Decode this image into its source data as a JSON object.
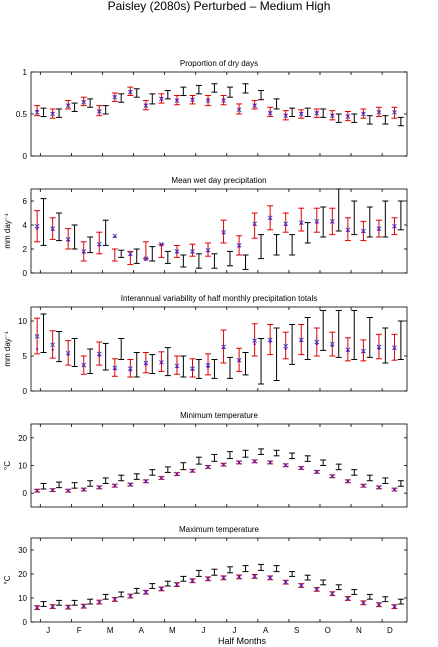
{
  "figure": {
    "title": "Paisley (2080s) Perturbed – Medium High",
    "xlabel": "Half Months"
  },
  "month_labels": [
    "J",
    "F",
    "M",
    "A",
    "M",
    "J",
    "J",
    "A",
    "S",
    "O",
    "N",
    "D"
  ],
  "colors": {
    "observed": "#000000",
    "model": "#dd0000",
    "marker": "#3344cc",
    "median": "#990099"
  },
  "chart_data": [
    {
      "type": "errorbar",
      "title": "Proportion of dry days",
      "ylabel": "",
      "ylim": [
        0,
        1
      ],
      "yticks": [
        "0",
        "0.5",
        "1"
      ],
      "x": [
        1,
        2,
        3,
        4,
        5,
        6,
        7,
        8,
        9,
        10,
        11,
        12,
        13,
        14,
        15,
        16,
        17,
        18,
        19,
        20,
        21,
        22,
        23,
        24
      ],
      "series": [
        {
          "role": "observed",
          "low": [
            0.47,
            0.46,
            0.53,
            0.58,
            0.5,
            0.64,
            0.7,
            0.62,
            0.68,
            0.72,
            0.74,
            0.76,
            0.7,
            0.75,
            0.67,
            0.56,
            0.47,
            0.47,
            0.46,
            0.4,
            0.4,
            0.38,
            0.38,
            0.36
          ],
          "high": [
            0.57,
            0.56,
            0.63,
            0.68,
            0.6,
            0.74,
            0.8,
            0.74,
            0.78,
            0.82,
            0.84,
            0.86,
            0.82,
            0.86,
            0.78,
            0.68,
            0.57,
            0.57,
            0.56,
            0.5,
            0.5,
            0.48,
            0.48,
            0.46
          ]
        },
        {
          "role": "model",
          "low": [
            0.48,
            0.45,
            0.56,
            0.6,
            0.48,
            0.65,
            0.72,
            0.55,
            0.63,
            0.61,
            0.62,
            0.6,
            0.61,
            0.5,
            0.56,
            0.47,
            0.43,
            0.45,
            0.46,
            0.43,
            0.42,
            0.45,
            0.47,
            0.45
          ],
          "high": [
            0.6,
            0.56,
            0.66,
            0.7,
            0.6,
            0.75,
            0.82,
            0.66,
            0.74,
            0.72,
            0.72,
            0.72,
            0.72,
            0.62,
            0.66,
            0.58,
            0.54,
            0.55,
            0.56,
            0.54,
            0.53,
            0.56,
            0.58,
            0.58
          ],
          "mean": [
            0.52,
            0.5,
            0.6,
            0.64,
            0.53,
            0.7,
            0.76,
            0.6,
            0.68,
            0.66,
            0.67,
            0.66,
            0.66,
            0.55,
            0.6,
            0.51,
            0.48,
            0.5,
            0.51,
            0.48,
            0.47,
            0.5,
            0.52,
            0.52
          ],
          "median": [
            0.54,
            0.51,
            0.61,
            0.65,
            0.54,
            0.71,
            0.77,
            0.61,
            0.69,
            0.67,
            0.68,
            0.67,
            0.67,
            0.56,
            0.61,
            0.52,
            0.49,
            0.51,
            0.52,
            0.49,
            0.48,
            0.51,
            0.53,
            0.53
          ]
        }
      ]
    },
    {
      "type": "errorbar",
      "title": "Mean wet day precipitation",
      "ylabel": "mm day⁻¹",
      "ylim": [
        0,
        7
      ],
      "yticks": [
        "0",
        "2",
        "4",
        "6"
      ],
      "x": [
        1,
        2,
        3,
        4,
        5,
        6,
        7,
        8,
        9,
        10,
        11,
        12,
        13,
        14,
        15,
        16,
        17,
        18,
        19,
        20,
        21,
        22,
        23,
        24
      ],
      "series": [
        {
          "role": "observed",
          "low": [
            2.3,
            2.7,
            2.0,
            1.7,
            2.3,
            1.3,
            0.8,
            1.0,
            0.8,
            0.5,
            0.4,
            0.4,
            0.6,
            0.3,
            1.2,
            1.5,
            1.5,
            2.5,
            3.0,
            3.5,
            3.2,
            3.0,
            3.0,
            3.6
          ],
          "high": [
            6.2,
            5.0,
            4.0,
            3.0,
            4.4,
            1.9,
            2.0,
            2.2,
            1.8,
            1.5,
            1.6,
            1.6,
            1.8,
            1.5,
            3.2,
            3.2,
            3.2,
            4.2,
            5.5,
            7.0,
            6.0,
            5.5,
            6.0,
            6.0
          ]
        },
        {
          "role": "model",
          "low": [
            2.6,
            2.8,
            2.0,
            1.0,
            1.6,
            1.0,
            0.7,
            1.2,
            1.3,
            1.3,
            1.4,
            1.4,
            2.5,
            1.5,
            2.9,
            3.6,
            3.4,
            3.5,
            3.4,
            3.2,
            2.7,
            2.7,
            3.0,
            3.2
          ],
          "high": [
            5.2,
            4.6,
            3.7,
            2.6,
            3.4,
            2.0,
            1.8,
            2.6,
            2.4,
            2.3,
            2.4,
            2.5,
            4.4,
            3.1,
            5.0,
            5.6,
            5.0,
            5.4,
            5.4,
            5.4,
            4.6,
            4.3,
            4.4,
            4.6
          ],
          "mean": [
            3.9,
            3.7,
            2.8,
            1.8,
            2.4,
            3.1,
            1.6,
            1.2,
            2.4,
            1.8,
            1.8,
            1.9,
            3.4,
            2.3,
            4.1,
            4.6,
            4.1,
            4.2,
            4.3,
            4.3,
            3.6,
            3.5,
            3.7,
            3.9
          ],
          "median": [
            3.7,
            3.6,
            2.7,
            1.7,
            2.3,
            3.0,
            1.5,
            1.1,
            2.3,
            1.7,
            1.7,
            1.8,
            3.3,
            2.2,
            4.0,
            4.5,
            4.0,
            4.1,
            4.2,
            4.2,
            3.5,
            3.4,
            3.6,
            3.8
          ]
        }
      ]
    },
    {
      "type": "errorbar",
      "title": "Interannual variability of half monthly precipitation totals",
      "ylabel": "mm day⁻¹",
      "ylim": [
        0,
        12
      ],
      "yticks": [
        "0",
        "5",
        "10"
      ],
      "x": [
        1,
        2,
        3,
        4,
        5,
        6,
        7,
        8,
        9,
        10,
        11,
        12,
        13,
        14,
        15,
        16,
        17,
        18,
        19,
        20,
        21,
        22,
        23,
        24
      ],
      "series": [
        {
          "role": "observed",
          "low": [
            5.5,
            4.2,
            3.5,
            2.5,
            3.0,
            4.5,
            2.0,
            2.5,
            2.2,
            2.0,
            1.8,
            1.8,
            1.8,
            2.3,
            1.0,
            1.5,
            3.8,
            4.5,
            5.8,
            4.8,
            4.5,
            4.8,
            4.0,
            4.5
          ],
          "high": [
            11.0,
            8.5,
            7.5,
            6.0,
            6.8,
            7.5,
            5.5,
            5.2,
            6.2,
            5.0,
            4.5,
            4.5,
            4.8,
            5.5,
            7.5,
            9.0,
            9.5,
            10.5,
            11.5,
            11.5,
            11.5,
            10.5,
            9.0,
            10.0
          ]
        },
        {
          "role": "model",
          "low": [
            5.3,
            4.7,
            3.7,
            2.4,
            3.7,
            2.1,
            2.0,
            2.6,
            2.8,
            2.4,
            2.0,
            2.3,
            4.0,
            2.8,
            5.0,
            5.2,
            4.6,
            5.2,
            5.0,
            5.0,
            4.3,
            4.3,
            4.6,
            4.4
          ],
          "high": [
            10.4,
            8.6,
            7.2,
            5.0,
            7.0,
            4.6,
            4.5,
            5.5,
            5.6,
            5.0,
            4.6,
            5.3,
            8.7,
            6.1,
            9.6,
            9.5,
            8.4,
            9.5,
            9.0,
            8.4,
            7.6,
            7.3,
            8.1,
            8.1
          ],
          "mean": [
            7.8,
            6.6,
            5.4,
            3.7,
            5.3,
            3.3,
            3.2,
            4.0,
            4.1,
            3.6,
            3.2,
            3.7,
            6.3,
            4.4,
            7.2,
            7.3,
            6.4,
            7.3,
            7.0,
            6.7,
            5.9,
            5.7,
            6.3,
            6.2
          ],
          "median": [
            6.0,
            5.9,
            5.2,
            3.6,
            5.0,
            3.1,
            2.9,
            3.8,
            4.0,
            3.4,
            3.0,
            3.4,
            6.1,
            4.3,
            6.7,
            7.0,
            6.0,
            7.1,
            6.7,
            6.4,
            5.7,
            5.5,
            6.0,
            6.0
          ]
        }
      ]
    },
    {
      "type": "errorbar",
      "title": "Minimum temperature",
      "ylabel": "°C",
      "ylim": [
        -5,
        25
      ],
      "yticks": [
        "0",
        "10",
        "20"
      ],
      "x": [
        1,
        2,
        3,
        4,
        5,
        6,
        7,
        8,
        9,
        10,
        11,
        12,
        13,
        14,
        15,
        16,
        17,
        18,
        19,
        20,
        21,
        22,
        23,
        24
      ],
      "series": [
        {
          "role": "observed",
          "low": [
            1.5,
            2.0,
            1.8,
            2.5,
            3.5,
            4.5,
            5.0,
            6.5,
            7.5,
            8.5,
            10.5,
            11.5,
            12.5,
            13.0,
            14.0,
            13.5,
            12.5,
            11.5,
            10.0,
            8.5,
            6.5,
            4.5,
            3.5,
            2.5
          ],
          "high": [
            3.5,
            4.0,
            3.8,
            4.5,
            5.5,
            6.5,
            7.0,
            8.5,
            9.5,
            11.0,
            13.0,
            14.0,
            15.0,
            15.5,
            16.0,
            15.5,
            14.5,
            13.5,
            12.0,
            10.5,
            8.5,
            6.5,
            5.5,
            4.5
          ]
        },
        {
          "role": "model",
          "low": [
            0.4,
            0.6,
            0.4,
            0.8,
            1.6,
            2.2,
            2.6,
            3.8,
            5.0,
            6.4,
            7.6,
            9.0,
            9.8,
            10.6,
            11.0,
            10.6,
            9.6,
            8.6,
            7.2,
            5.6,
            3.8,
            2.2,
            1.6,
            0.8
          ],
          "high": [
            1.4,
            1.6,
            1.4,
            1.8,
            2.6,
            3.2,
            3.6,
            4.8,
            6.0,
            7.4,
            8.6,
            10.0,
            10.8,
            11.6,
            12.0,
            11.6,
            10.6,
            9.6,
            8.2,
            6.6,
            4.8,
            3.2,
            2.6,
            1.8
          ],
          "mean": [
            0.9,
            1.1,
            0.9,
            1.3,
            2.1,
            2.7,
            3.1,
            4.3,
            5.5,
            6.9,
            8.1,
            9.5,
            10.3,
            11.1,
            11.5,
            11.1,
            10.1,
            9.1,
            7.7,
            6.1,
            4.3,
            2.7,
            2.1,
            1.3
          ],
          "median": [
            0.9,
            1.1,
            0.9,
            1.3,
            2.1,
            2.7,
            3.1,
            4.3,
            5.5,
            6.9,
            8.1,
            9.5,
            10.3,
            11.1,
            11.5,
            11.1,
            10.1,
            9.1,
            7.7,
            6.1,
            4.3,
            2.7,
            2.1,
            1.3
          ]
        }
      ]
    },
    {
      "type": "errorbar",
      "title": "Maximum temperature",
      "ylabel": "°C",
      "ylim": [
        0,
        35
      ],
      "yticks": [
        "0",
        "10",
        "20",
        "30"
      ],
      "x": [
        1,
        2,
        3,
        4,
        5,
        6,
        7,
        8,
        9,
        10,
        11,
        12,
        13,
        14,
        15,
        16,
        17,
        18,
        19,
        20,
        21,
        22,
        23,
        24
      ],
      "series": [
        {
          "role": "observed",
          "low": [
            6.5,
            7.0,
            7.0,
            7.5,
            9.5,
            10.5,
            12.0,
            14.0,
            15.0,
            17.0,
            19.0,
            19.5,
            20.5,
            21.0,
            21.5,
            21.0,
            19.0,
            17.5,
            15.5,
            13.5,
            11.5,
            9.5,
            8.5,
            7.5
          ],
          "high": [
            8.5,
            9.0,
            9.0,
            9.5,
            11.5,
            12.5,
            14.0,
            16.0,
            17.0,
            19.0,
            21.5,
            22.0,
            23.0,
            23.5,
            24.0,
            23.5,
            21.0,
            19.5,
            17.5,
            15.5,
            13.5,
            11.5,
            10.5,
            9.5
          ]
        },
        {
          "role": "model",
          "low": [
            5.2,
            5.6,
            5.4,
            5.8,
            7.5,
            8.6,
            10.0,
            11.6,
            13.0,
            14.8,
            16.4,
            17.2,
            17.6,
            18.0,
            18.2,
            17.6,
            15.8,
            14.4,
            12.8,
            11.0,
            9.0,
            7.2,
            6.4,
            5.6
          ],
          "high": [
            6.8,
            7.2,
            7.0,
            7.4,
            9.1,
            10.2,
            11.6,
            13.2,
            14.6,
            16.4,
            18.0,
            18.8,
            19.2,
            19.6,
            19.8,
            19.2,
            17.4,
            16.0,
            14.4,
            12.6,
            10.6,
            8.8,
            8.0,
            7.2
          ],
          "mean": [
            6.0,
            6.4,
            6.2,
            6.6,
            8.3,
            9.4,
            10.8,
            12.4,
            13.8,
            15.6,
            17.2,
            18.0,
            18.4,
            18.8,
            19.0,
            18.4,
            16.6,
            15.2,
            13.6,
            11.8,
            9.8,
            8.0,
            7.2,
            6.4
          ],
          "median": [
            6.0,
            6.4,
            6.2,
            6.6,
            8.3,
            9.4,
            10.8,
            12.4,
            13.8,
            15.6,
            17.2,
            18.0,
            18.4,
            18.8,
            19.0,
            18.4,
            16.6,
            15.2,
            13.6,
            11.8,
            9.8,
            8.0,
            7.2,
            6.4
          ]
        }
      ]
    }
  ]
}
